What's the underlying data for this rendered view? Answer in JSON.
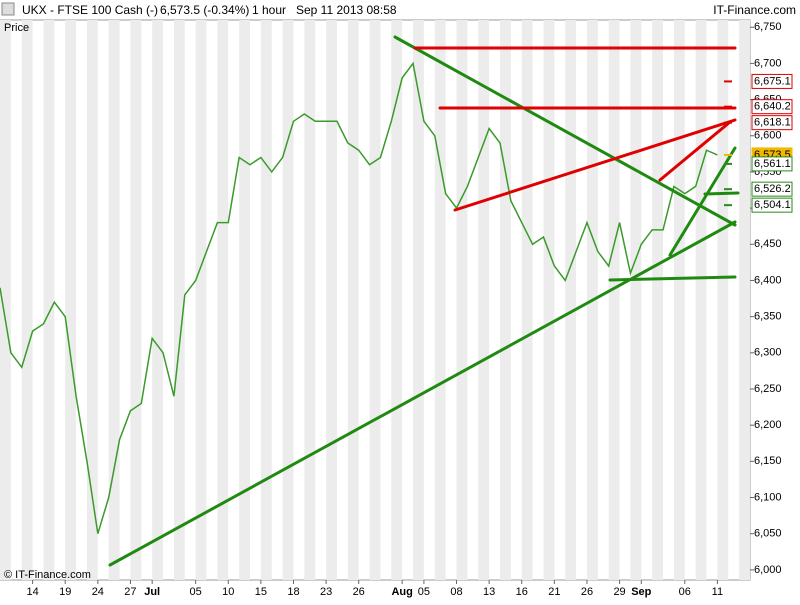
{
  "header": {
    "symbol": "UKX - FTSE 100 Cash (-)",
    "quote": "6,573.5 (-0.34%)",
    "interval": "1 hour",
    "timestamp": "Sep 11 2013 08:58",
    "brand": "IT-Finance.com"
  },
  "chart_data": {
    "type": "line",
    "y_label": "Price",
    "copyright": "© IT-Finance.com",
    "color": "#3a9a2a",
    "x": [
      "2013-06-11",
      "2013-06-12",
      "2013-06-13",
      "2013-06-14",
      "2013-06-17",
      "2013-06-18",
      "2013-06-19",
      "2013-06-20",
      "2013-06-21",
      "2013-06-24",
      "2013-06-25",
      "2013-06-26",
      "2013-06-27",
      "2013-06-28",
      "2013-07-01",
      "2013-07-02",
      "2013-07-03",
      "2013-07-04",
      "2013-07-05",
      "2013-07-08",
      "2013-07-09",
      "2013-07-10",
      "2013-07-11",
      "2013-07-12",
      "2013-07-15",
      "2013-07-16",
      "2013-07-17",
      "2013-07-18",
      "2013-07-19",
      "2013-07-22",
      "2013-07-23",
      "2013-07-24",
      "2013-07-25",
      "2013-07-26",
      "2013-07-29",
      "2013-07-30",
      "2013-07-31",
      "2013-08-01",
      "2013-08-02",
      "2013-08-05",
      "2013-08-06",
      "2013-08-07",
      "2013-08-08",
      "2013-08-09",
      "2013-08-12",
      "2013-08-13",
      "2013-08-14",
      "2013-08-15",
      "2013-08-16",
      "2013-08-19",
      "2013-08-20",
      "2013-08-21",
      "2013-08-22",
      "2013-08-23",
      "2013-08-26",
      "2013-08-27",
      "2013-08-28",
      "2013-08-29",
      "2013-08-30",
      "2013-09-02",
      "2013-09-03",
      "2013-09-04",
      "2013-09-05",
      "2013-09-06",
      "2013-09-09",
      "2013-09-10",
      "2013-09-11"
    ],
    "values": [
      6390,
      6300,
      6280,
      6330,
      6340,
      6370,
      6350,
      6240,
      6150,
      6050,
      6100,
      6180,
      6220,
      6230,
      6320,
      6300,
      6240,
      6380,
      6400,
      6440,
      6480,
      6480,
      6570,
      6560,
      6570,
      6550,
      6570,
      6620,
      6630,
      6620,
      6620,
      6620,
      6590,
      6580,
      6560,
      6570,
      6620,
      6680,
      6700,
      6620,
      6600,
      6520,
      6500,
      6530,
      6570,
      6610,
      6590,
      6510,
      6480,
      6450,
      6460,
      6420,
      6400,
      6440,
      6480,
      6440,
      6420,
      6480,
      6410,
      6450,
      6470,
      6470,
      6530,
      6520,
      6530,
      6580,
      6573.5
    ],
    "xlim": [
      "2013-06-11",
      "2013-09-16"
    ],
    "xticks": [
      {
        "value": "2013-06-14",
        "label": "14"
      },
      {
        "value": "2013-06-19",
        "label": "19"
      },
      {
        "value": "2013-06-24",
        "label": "24"
      },
      {
        "value": "2013-06-27",
        "label": "27"
      },
      {
        "value": "2013-07-01",
        "label": "Jul"
      },
      {
        "value": "2013-07-05",
        "label": "05"
      },
      {
        "value": "2013-07-10",
        "label": "10"
      },
      {
        "value": "2013-07-15",
        "label": "15"
      },
      {
        "value": "2013-07-18",
        "label": "18"
      },
      {
        "value": "2013-07-23",
        "label": "23"
      },
      {
        "value": "2013-07-26",
        "label": "26"
      },
      {
        "value": "2013-08-01",
        "label": "Aug"
      },
      {
        "value": "2013-08-05",
        "label": "05"
      },
      {
        "value": "2013-08-08",
        "label": "08"
      },
      {
        "value": "2013-08-13",
        "label": "13"
      },
      {
        "value": "2013-08-16",
        "label": "16"
      },
      {
        "value": "2013-08-21",
        "label": "21"
      },
      {
        "value": "2013-08-26",
        "label": "26"
      },
      {
        "value": "2013-08-29",
        "label": "29"
      },
      {
        "value": "2013-09-02",
        "label": "Sep"
      },
      {
        "value": "2013-09-06",
        "label": "06"
      },
      {
        "value": "2013-09-11",
        "label": "11"
      }
    ],
    "ylim": [
      5986,
      6760
    ],
    "yticks": [
      {
        "value": 6000,
        "label": "6,000"
      },
      {
        "value": 6050,
        "label": "6,050"
      },
      {
        "value": 6100,
        "label": "6,100"
      },
      {
        "value": 6150,
        "label": "6,150"
      },
      {
        "value": 6200,
        "label": "6,200"
      },
      {
        "value": 6250,
        "label": "6,250"
      },
      {
        "value": 6300,
        "label": "6,300"
      },
      {
        "value": 6350,
        "label": "6,350"
      },
      {
        "value": 6400,
        "label": "6,400"
      },
      {
        "value": 6450,
        "label": "6,450"
      },
      {
        "value": 6500,
        "label": "6,500"
      },
      {
        "value": 6550,
        "label": "6,550"
      },
      {
        "value": 6600,
        "label": "6,600"
      },
      {
        "value": 6650,
        "label": "6,650"
      },
      {
        "value": 6700,
        "label": "6,700"
      },
      {
        "value": 6750,
        "label": "6,750"
      }
    ],
    "price_levels": {
      "values": [
        6675.1,
        6640.2,
        6618.1,
        6573.5,
        6561.1,
        6526.2,
        6504.1
      ],
      "value_labels": [
        "6,675.1",
        "6,640.2",
        "6,618.1",
        "6,573.5",
        "6,561.1",
        "6,526.2",
        "6,504.1"
      ],
      "colors": [
        "#e00000",
        "#e00000",
        "#e00000",
        "#f0b800",
        "#2a8a1a",
        "#2a8a1a",
        "#2a8a1a"
      ]
    }
  }
}
